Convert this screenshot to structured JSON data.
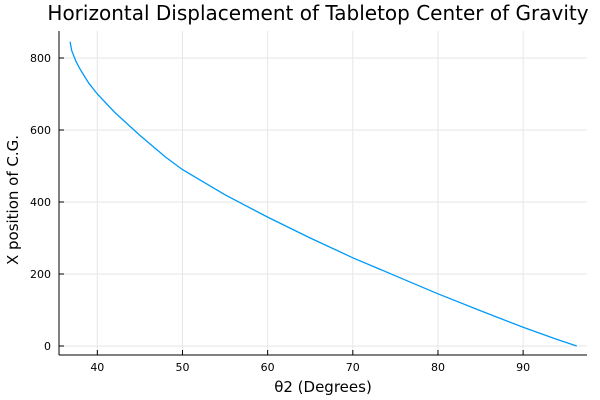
{
  "chart_data": {
    "type": "line",
    "title": "Horizontal Displacement of Tabletop Center of Gravity",
    "xlabel": "θ2 (Degrees)",
    "ylabel": "X position of C.G.",
    "xlim": [
      35.5,
      97.5
    ],
    "ylim": [
      -25,
      875
    ],
    "xticks": [
      40,
      50,
      60,
      70,
      80,
      90
    ],
    "yticks": [
      0,
      200,
      400,
      600,
      800
    ],
    "xtick_labels": [
      "40",
      "50",
      "60",
      "70",
      "80",
      "90"
    ],
    "ytick_labels": [
      "0",
      "200",
      "400",
      "600",
      "800"
    ],
    "grid": true,
    "legend": "none",
    "series": [
      {
        "color": "#009af9",
        "x": [
          36.8,
          37.0,
          37.5,
          38.0,
          39.0,
          40.0,
          42.0,
          45.0,
          48.0,
          50.0,
          55.0,
          60.0,
          65.0,
          70.0,
          75.0,
          80.0,
          85.0,
          90.0,
          94.0,
          96.3
        ],
        "y": [
          845,
          820,
          790,
          768,
          730,
          700,
          650,
          585,
          525,
          490,
          420,
          358,
          300,
          245,
          195,
          145,
          98,
          52,
          18,
          0
        ]
      }
    ]
  }
}
